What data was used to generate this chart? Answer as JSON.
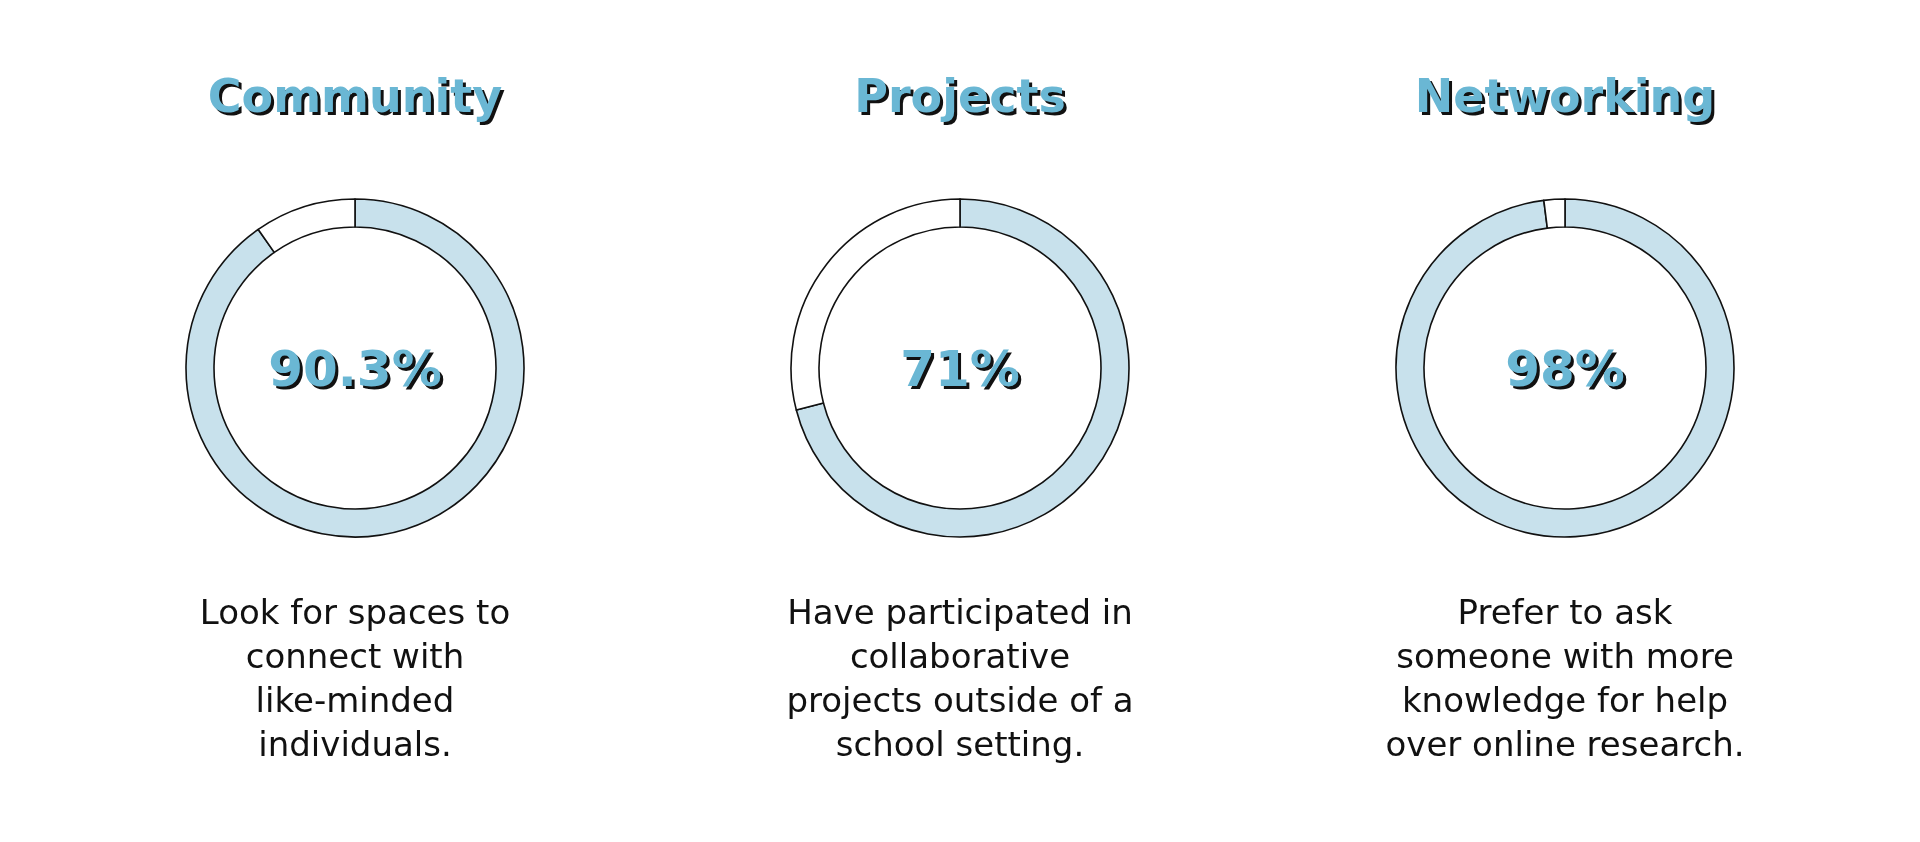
{
  "chart_data": [
    {
      "type": "donut",
      "title": "Community",
      "categories": [
        null,
        null
      ],
      "values": [
        90.3,
        9.7
      ],
      "colors": [
        "#c8e1ec",
        "#ffffff"
      ],
      "value_labels": [
        "90.3%",
        null
      ],
      "annotations": [
        "Look for spaces to connect with like-minded individuals."
      ]
    },
    {
      "type": "donut",
      "title": "Projects",
      "categories": [
        null,
        null
      ],
      "values": [
        71,
        29
      ],
      "colors": [
        "#c8e1ec",
        "#ffffff"
      ],
      "value_labels": [
        "71%",
        null
      ],
      "annotations": [
        "Have participated in collaborative projects outside of a school setting."
      ]
    },
    {
      "type": "donut",
      "title": "Networking",
      "categories": [
        null,
        null
      ],
      "values": [
        98,
        2
      ],
      "colors": [
        "#c8e1ec",
        "#ffffff"
      ],
      "value_labels": [
        "98%",
        null
      ],
      "annotations": [
        "Prefer to ask someone with more knowledge for help over online research."
      ]
    }
  ]
}
